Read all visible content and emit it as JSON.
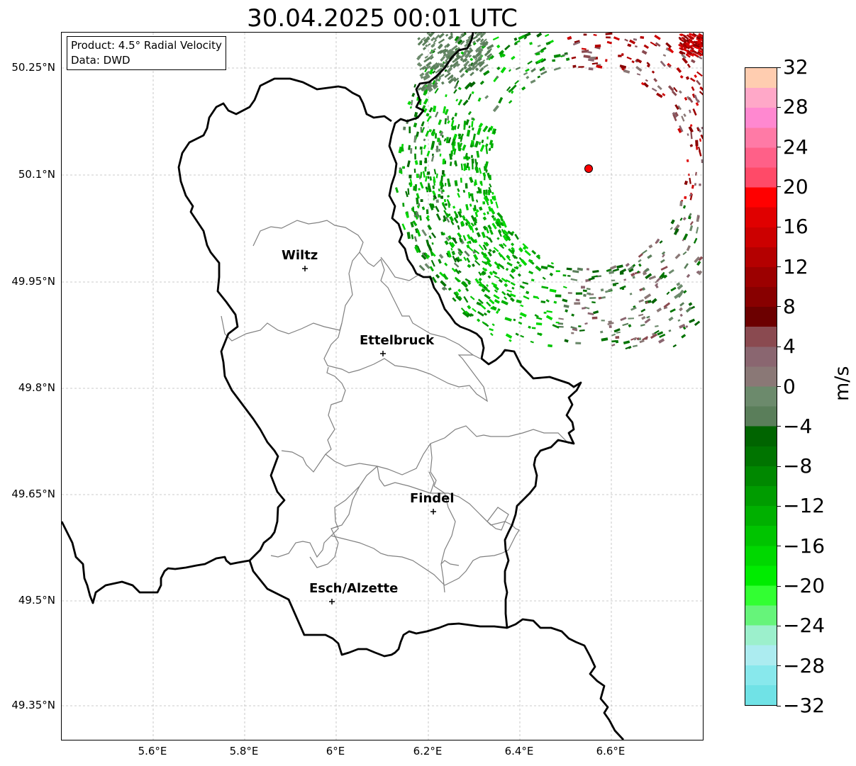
{
  "title": "30.04.2025 00:01 UTC",
  "info": {
    "product": "Product: 4.5° Radial Velocity",
    "source": "Data: DWD"
  },
  "lat_ticks": [
    "50.25°N",
    "50.1°N",
    "49.95°N",
    "49.8°N",
    "49.65°N",
    "49.5°N",
    "49.35°N"
  ],
  "lon_ticks": [
    "5.6°E",
    "5.8°E",
    "6°E",
    "6.2°E",
    "6.4°E",
    "6.6°E"
  ],
  "cities": [
    {
      "name": "Wiltz",
      "lon": 5.93,
      "lat": 49.969
    },
    {
      "name": "Ettelbruck",
      "lon": 6.103,
      "lat": 49.85
    },
    {
      "name": "Findel",
      "lon": 6.21,
      "lat": 49.626
    },
    {
      "name": "Esch/Alzette",
      "lon": 5.99,
      "lat": 49.498
    }
  ],
  "radar_site": {
    "lon": 6.55,
    "lat": 50.11,
    "color": "#ff0000"
  },
  "colorbar": {
    "unit": "m/s",
    "min": -32,
    "max": 32,
    "labels": [
      "32",
      "28",
      "24",
      "20",
      "16",
      "12",
      "8",
      "4",
      "0",
      "−4",
      "−8",
      "−12",
      "−16",
      "−20",
      "−24",
      "−28",
      "−32"
    ],
    "colors_top_to_bottom": [
      "#ffcdb0",
      "#ffa8c8",
      "#ff88d0",
      "#ff7aa6",
      "#ff6088",
      "#ff4a68",
      "#ff0000",
      "#e00000",
      "#cc0000",
      "#b40000",
      "#9c0000",
      "#880000",
      "#6c0000",
      "#8a4a50",
      "#8a6670",
      "#8a7876",
      "#6c8a6c",
      "#5a7e5a",
      "#006400",
      "#007400",
      "#008800",
      "#009c00",
      "#00b000",
      "#00c400",
      "#00d800",
      "#00ec00",
      "#32ff32",
      "#66f47a",
      "#9cf0cc",
      "#acecf0",
      "#88e8ec",
      "#70e2e6"
    ]
  }
}
